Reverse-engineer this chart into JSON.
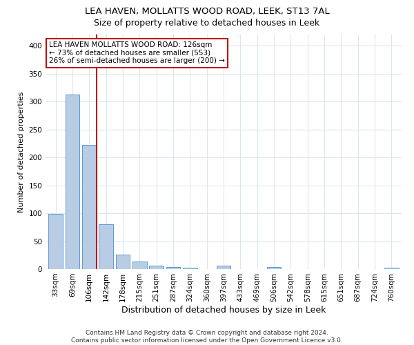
{
  "title1": "LEA HAVEN, MOLLATTS WOOD ROAD, LEEK, ST13 7AL",
  "title2": "Size of property relative to detached houses in Leek",
  "xlabel": "Distribution of detached houses by size in Leek",
  "ylabel": "Number of detached properties",
  "bar_labels": [
    "33sqm",
    "69sqm",
    "106sqm",
    "142sqm",
    "178sqm",
    "215sqm",
    "251sqm",
    "287sqm",
    "324sqm",
    "360sqm",
    "397sqm",
    "433sqm",
    "469sqm",
    "506sqm",
    "542sqm",
    "578sqm",
    "615sqm",
    "651sqm",
    "687sqm",
    "724sqm",
    "760sqm"
  ],
  "bar_values": [
    99,
    312,
    222,
    80,
    26,
    13,
    6,
    4,
    3,
    0,
    6,
    0,
    0,
    4,
    0,
    0,
    0,
    0,
    0,
    0,
    3
  ],
  "bar_color": "#b8cce4",
  "bar_edge_color": "#5b9bd5",
  "vline_index": 2,
  "vline_color": "#c00000",
  "annotation_text": "LEA HAVEN MOLLATTS WOOD ROAD: 126sqm\n← 73% of detached houses are smaller (553)\n26% of semi-detached houses are larger (200) →",
  "annotation_box_color": "#ffffff",
  "annotation_box_edge": "#c00000",
  "ylim": [
    0,
    420
  ],
  "yticks": [
    0,
    50,
    100,
    150,
    200,
    250,
    300,
    350,
    400
  ],
  "footer_text": "Contains HM Land Registry data © Crown copyright and database right 2024.\nContains public sector information licensed under the Open Government Licence v3.0.",
  "bg_color": "#ffffff",
  "grid_color": "#dce6f1",
  "title1_fontsize": 9.5,
  "title2_fontsize": 9,
  "xlabel_fontsize": 9,
  "ylabel_fontsize": 8,
  "tick_fontsize": 7.5,
  "annotation_fontsize": 7.5,
  "footer_fontsize": 6.5
}
